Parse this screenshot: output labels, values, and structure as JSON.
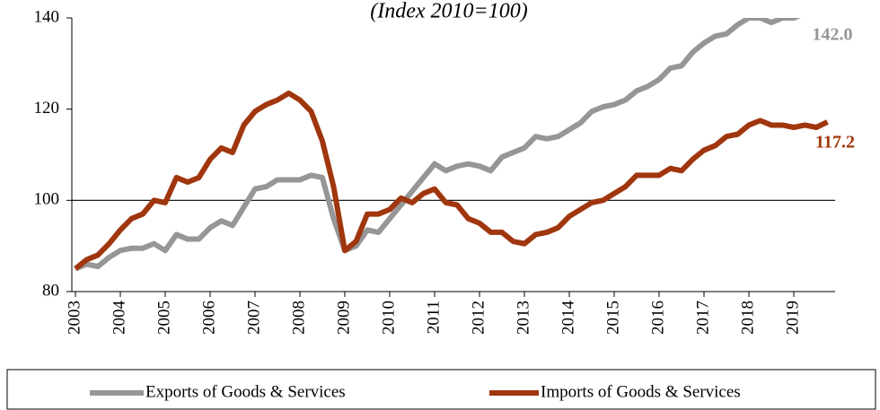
{
  "chart_data": {
    "type": "line",
    "title": "(Index 2010=100)",
    "categories": [
      "2003",
      null,
      null,
      null,
      "2004",
      null,
      null,
      null,
      "2005",
      null,
      null,
      null,
      "2006",
      null,
      null,
      null,
      "2007",
      null,
      null,
      null,
      "2008",
      null,
      null,
      null,
      "2009",
      null,
      null,
      null,
      "2010",
      null,
      null,
      null,
      "2011",
      null,
      null,
      null,
      "2012",
      null,
      null,
      null,
      "2013",
      null,
      null,
      null,
      "2014",
      null,
      null,
      null,
      "2015",
      null,
      null,
      null,
      "2016",
      null,
      null,
      null,
      "2017",
      null,
      null,
      null,
      "2018",
      null,
      null,
      null,
      "2019",
      null,
      null,
      null
    ],
    "series": [
      {
        "name": "Exports of Goods & Services",
        "color": "#969696",
        "values": [
          85,
          86,
          85.5,
          87.5,
          89,
          89.5,
          89.5,
          90.5,
          89,
          92.5,
          91.5,
          91.5,
          94,
          95.5,
          94.5,
          98.5,
          102.5,
          103,
          104.5,
          104.5,
          104.5,
          105.5,
          105,
          96,
          89,
          90,
          93.5,
          93,
          96,
          99,
          102,
          105,
          108,
          106.5,
          107.5,
          108,
          107.5,
          106.5,
          109.5,
          110.5,
          111.5,
          114,
          113.5,
          114,
          115.5,
          117,
          119.5,
          120.5,
          121,
          122,
          124,
          125,
          126.5,
          129,
          129.5,
          132.5,
          134.5,
          136,
          136.5,
          138.5,
          140,
          140,
          139,
          140,
          140,
          141,
          141.5,
          142.0
        ]
      },
      {
        "name": "Imports of Goods & Services",
        "color": "#a0360e",
        "values": [
          85,
          87,
          88,
          90.5,
          93.5,
          96,
          97,
          100,
          99.5,
          105,
          104,
          105,
          109,
          111.5,
          110.5,
          116.5,
          119.5,
          121,
          122,
          123.5,
          122,
          119.5,
          113,
          103,
          89,
          91,
          97,
          97,
          98,
          100.5,
          99.5,
          101.5,
          102.5,
          99.5,
          99,
          96,
          95,
          93,
          93,
          91,
          90.5,
          92.5,
          93,
          94,
          96.5,
          98,
          99.5,
          100,
          101.5,
          103,
          105.5,
          105.5,
          105.5,
          107,
          106.5,
          109,
          111,
          112,
          114,
          114.5,
          116.5,
          117.5,
          116.5,
          116.5,
          116,
          116.5,
          116,
          117.2
        ]
      }
    ],
    "annotations": [
      "142.0",
      "117.2"
    ],
    "hline": 100,
    "ylim": [
      80,
      140
    ],
    "yticks": [
      80,
      100,
      120,
      140
    ]
  }
}
